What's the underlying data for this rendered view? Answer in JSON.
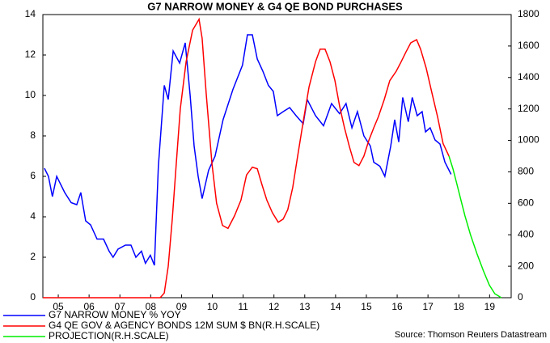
{
  "chart_data": {
    "type": "line",
    "title": "G7 NARROW MONEY & G4 QE BOND PURCHASES",
    "source": "Source: Thomson Reuters Datastream",
    "xlim": [
      2005,
      2020.2
    ],
    "xticks": [
      {
        "value": 2005.5,
        "label": "05"
      },
      {
        "value": 2006.5,
        "label": "06"
      },
      {
        "value": 2007.5,
        "label": "07"
      },
      {
        "value": 2008.5,
        "label": "08"
      },
      {
        "value": 2009.5,
        "label": "09"
      },
      {
        "value": 2010.5,
        "label": "10"
      },
      {
        "value": 2011.5,
        "label": "11"
      },
      {
        "value": 2012.5,
        "label": "12"
      },
      {
        "value": 2013.5,
        "label": "13"
      },
      {
        "value": 2014.5,
        "label": "14"
      },
      {
        "value": 2015.5,
        "label": "15"
      },
      {
        "value": 2016.5,
        "label": "16"
      },
      {
        "value": 2017.5,
        "label": "17"
      },
      {
        "value": 2018.5,
        "label": "18"
      },
      {
        "value": 2019.5,
        "label": "19"
      }
    ],
    "ylim": [
      0,
      14
    ],
    "yticks": [
      0,
      2,
      4,
      6,
      8,
      10,
      12,
      14
    ],
    "y2lim": [
      0,
      1800
    ],
    "y2ticks": [
      0,
      200,
      400,
      600,
      800,
      1000,
      1200,
      1400,
      1600,
      1800
    ],
    "series": [
      {
        "name": "G7 NARROW MONEY % YOY",
        "color": "#0000ff",
        "x": [
          2005.05,
          2005.18,
          2005.31,
          2005.45,
          2005.71,
          2005.92,
          2006.1,
          2006.23,
          2006.39,
          2006.55,
          2006.76,
          2006.97,
          2007.15,
          2007.28,
          2007.44,
          2007.68,
          2007.86,
          2008.02,
          2008.2,
          2008.33,
          2008.49,
          2008.62,
          2008.75,
          2008.94,
          2009.07,
          2009.23,
          2009.44,
          2009.62,
          2009.78,
          2009.91,
          2010.04,
          2010.17,
          2010.38,
          2010.59,
          2010.85,
          2011.17,
          2011.48,
          2011.64,
          2011.8,
          2011.96,
          2012.14,
          2012.32,
          2012.48,
          2012.61,
          2012.8,
          2013.01,
          2013.22,
          2013.45,
          2013.58,
          2013.85,
          2014.11,
          2014.37,
          2014.63,
          2014.84,
          2015.03,
          2015.21,
          2015.42,
          2015.63,
          2015.74,
          2015.94,
          2016.1,
          2016.29,
          2016.42,
          2016.55,
          2016.68,
          2016.86,
          2016.99,
          2017.15,
          2017.31,
          2017.42,
          2017.57,
          2017.73,
          2017.89,
          2018.05,
          2018.25
        ],
        "values": [
          6.4,
          6.0,
          5.0,
          6.0,
          5.2,
          4.7,
          4.6,
          5.2,
          3.8,
          3.6,
          2.9,
          2.9,
          2.3,
          2.0,
          2.4,
          2.6,
          2.6,
          2.0,
          2.3,
          1.7,
          2.1,
          1.6,
          6.5,
          10.5,
          9.8,
          12.2,
          11.6,
          12.6,
          10.0,
          7.5,
          6.0,
          4.9,
          6.3,
          7.0,
          8.8,
          10.3,
          11.5,
          13.0,
          13.0,
          11.8,
          11.2,
          10.5,
          10.2,
          9.0,
          9.2,
          9.4,
          9.0,
          8.6,
          9.8,
          9.0,
          8.5,
          9.6,
          9.1,
          9.6,
          8.4,
          9.2,
          8.0,
          7.5,
          6.7,
          6.5,
          6.0,
          7.5,
          8.8,
          7.7,
          9.9,
          8.7,
          9.9,
          9.0,
          9.2,
          8.2,
          8.4,
          7.8,
          7.6,
          6.7,
          6.1
        ]
      },
      {
        "name": "G4 QE GOV & AGENCY BONDS 12M SUM $ BN(R.H.SCALE)",
        "color": "#ff0000",
        "axis": "y2",
        "x": [
          2005.0,
          2008.81,
          2008.94,
          2009.07,
          2009.2,
          2009.33,
          2009.46,
          2009.65,
          2009.86,
          2010.07,
          2010.17,
          2010.3,
          2010.49,
          2010.64,
          2010.83,
          2011.01,
          2011.22,
          2011.43,
          2011.61,
          2011.8,
          2011.96,
          2012.11,
          2012.27,
          2012.45,
          2012.64,
          2012.8,
          2012.95,
          2013.11,
          2013.27,
          2013.45,
          2013.64,
          2013.85,
          2014.0,
          2014.16,
          2014.32,
          2014.48,
          2014.63,
          2014.79,
          2014.95,
          2015.1,
          2015.26,
          2015.42,
          2015.58,
          2015.74,
          2015.89,
          2016.08,
          2016.26,
          2016.47,
          2016.63,
          2016.78,
          2016.94,
          2017.13,
          2017.26,
          2017.44,
          2017.63,
          2017.81,
          2017.99,
          2018.18
        ],
        "values": [
          0,
          0,
          30,
          200,
          500,
          850,
          1200,
          1500,
          1700,
          1770,
          1650,
          1300,
          850,
          600,
          460,
          440,
          520,
          620,
          780,
          830,
          820,
          720,
          620,
          540,
          480,
          500,
          560,
          700,
          900,
          1120,
          1340,
          1500,
          1580,
          1580,
          1500,
          1380,
          1220,
          1080,
          960,
          860,
          840,
          900,
          1000,
          1080,
          1150,
          1260,
          1380,
          1440,
          1500,
          1560,
          1620,
          1640,
          1580,
          1460,
          1300,
          1150,
          980,
          900
        ]
      },
      {
        "name": "PROJECTION(R.H.SCALE)",
        "color": "#00ee00",
        "axis": "y2",
        "x": [
          2018.18,
          2018.31,
          2018.44,
          2018.57,
          2018.7,
          2018.88,
          2019.09,
          2019.3,
          2019.49,
          2019.67,
          2019.88
        ],
        "values": [
          900,
          820,
          720,
          620,
          520,
          400,
          280,
          170,
          80,
          25,
          0
        ]
      }
    ]
  }
}
